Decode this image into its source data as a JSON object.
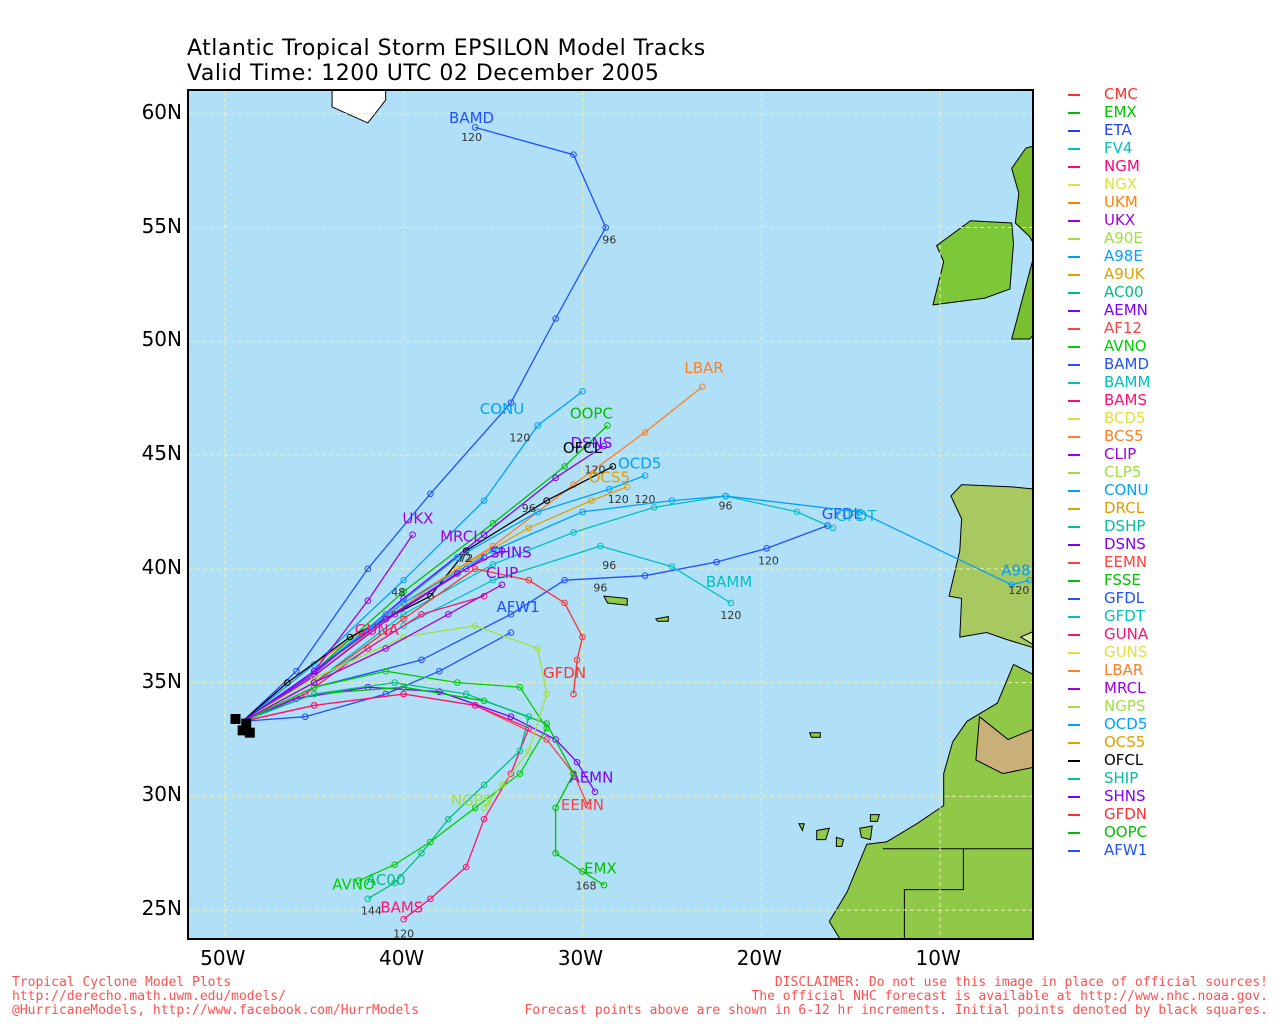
{
  "title_line1": "Atlantic Tropical Storm EPSILON Model Tracks",
  "title_line2": "Valid Time: 1200 UTC 02 December 2005",
  "axes": {
    "lat_labels": [
      "60N",
      "55N",
      "50N",
      "45N",
      "40N",
      "35N",
      "30N",
      "25N"
    ],
    "lon_labels": [
      "50W",
      "40W",
      "30W",
      "20W",
      "10W"
    ]
  },
  "legend": [
    {
      "name": "CMC",
      "color": "#ff3030"
    },
    {
      "name": "EMX",
      "color": "#00c000"
    },
    {
      "name": "ETA",
      "color": "#2040ff"
    },
    {
      "name": "FV4",
      "color": "#00c0c0"
    },
    {
      "name": "NGM",
      "color": "#ff0080"
    },
    {
      "name": "NGX",
      "color": "#e0e040"
    },
    {
      "name": "UKM",
      "color": "#ff8000"
    },
    {
      "name": "UKX",
      "color": "#a000e0"
    },
    {
      "name": "A90E",
      "color": "#a0e040"
    },
    {
      "name": "A98E",
      "color": "#00a0ff"
    },
    {
      "name": "A9UK",
      "color": "#e0a000"
    },
    {
      "name": "AC00",
      "color": "#00c080"
    },
    {
      "name": "AEMN",
      "color": "#8000ff"
    },
    {
      "name": "AF12",
      "color": "#ff4040"
    },
    {
      "name": "AVNO",
      "color": "#00d000"
    },
    {
      "name": "BAMD",
      "color": "#2050ff"
    },
    {
      "name": "BAMM",
      "color": "#00c0c0"
    },
    {
      "name": "BAMS",
      "color": "#ff1070"
    },
    {
      "name": "BCD5",
      "color": "#e0e040"
    },
    {
      "name": "BCS5",
      "color": "#ff8020"
    },
    {
      "name": "CLIP",
      "color": "#a000e0"
    },
    {
      "name": "CLP5",
      "color": "#a0e040"
    },
    {
      "name": "CONU",
      "color": "#00a0ff"
    },
    {
      "name": "DRCL",
      "color": "#e0a000"
    },
    {
      "name": "DSHP",
      "color": "#00c0a0"
    },
    {
      "name": "DSNS",
      "color": "#8000ff"
    },
    {
      "name": "EEMN",
      "color": "#ff4040"
    },
    {
      "name": "FSSE",
      "color": "#00c000"
    },
    {
      "name": "GFDL",
      "color": "#2050ff"
    },
    {
      "name": "GFDT",
      "color": "#00c0c0"
    },
    {
      "name": "GUNA",
      "color": "#ff1070"
    },
    {
      "name": "GUNS",
      "color": "#e0e040"
    },
    {
      "name": "LBAR",
      "color": "#ff8020"
    },
    {
      "name": "MRCL",
      "color": "#a000e0"
    },
    {
      "name": "NGPS",
      "color": "#a0e040"
    },
    {
      "name": "OCD5",
      "color": "#00a0ff"
    },
    {
      "name": "OCS5",
      "color": "#e0a000"
    },
    {
      "name": "OFCL",
      "color": "#000000"
    },
    {
      "name": "SHIP",
      "color": "#00c0a0"
    },
    {
      "name": "SHNS",
      "color": "#8000ff"
    },
    {
      "name": "GFDN",
      "color": "#ff3030"
    },
    {
      "name": "OOPC",
      "color": "#00c000"
    },
    {
      "name": "AFW1",
      "color": "#2050ff"
    }
  ],
  "footer_left": "Tropical Cyclone Model Plots\nhttp://derecho.math.uwm.edu/models/\n@HurricaneModels, http://www.facebook.com/HurrModels",
  "footer_right": "DISCLAIMER: Do not use this image in place of official sources!\nThe official NHC forecast is available at http://www.nhc.noaa.gov.\nForecast points above are shown in 6-12 hr increments. Initial points denoted by black squares.",
  "tracks": [
    {
      "name": "BAMD",
      "color": "#2050ff",
      "label_pt": [
        -36.2,
        59.6
      ],
      "points": [
        [
          -49,
          33.3
        ],
        [
          -46,
          35.5
        ],
        [
          -42,
          40
        ],
        [
          -38.5,
          43.3
        ],
        [
          -34,
          47.3
        ],
        [
          -31.5,
          51
        ],
        [
          -28.7,
          55
        ],
        [
          -30.5,
          58.2
        ],
        [
          -36,
          59.4
        ]
      ],
      "hours": [
        [
          "96",
          -28.5,
          54.3
        ],
        [
          "120",
          -36.2,
          58.8
        ]
      ]
    },
    {
      "name": "LBAR",
      "color": "#ff8020",
      "label_pt": [
        -23.2,
        48.6
      ],
      "points": [
        [
          -49,
          33.3
        ],
        [
          -45,
          35.8
        ],
        [
          -40,
          38.5
        ],
        [
          -35,
          41
        ],
        [
          -30.5,
          43.7
        ],
        [
          -26.5,
          46
        ],
        [
          -23.3,
          48
        ]
      ],
      "hours": []
    },
    {
      "name": "CONU",
      "color": "#00a0ff",
      "label_pt": [
        -34.5,
        46.8
      ],
      "points": [
        [
          -49,
          33.3
        ],
        [
          -45,
          35.8
        ],
        [
          -40,
          39.5
        ],
        [
          -35.5,
          43
        ],
        [
          -32.5,
          46.3
        ],
        [
          -30,
          47.8
        ]
      ],
      "hours": [
        [
          "120",
          -33.5,
          45.6
        ]
      ]
    },
    {
      "name": "OOPC",
      "color": "#00c000",
      "label_pt": [
        -29.5,
        46.6
      ],
      "points": [
        [
          -49,
          33.3
        ],
        [
          -45,
          35.5
        ],
        [
          -40,
          39
        ],
        [
          -35,
          42
        ],
        [
          -31,
          44.5
        ],
        [
          -28.6,
          46.3
        ]
      ],
      "hours": []
    },
    {
      "name": "DSNS",
      "color": "#8000ff",
      "label_pt": [
        -29.5,
        45.3
      ],
      "points": [
        [
          -49,
          33.3
        ],
        [
          -45,
          35.4
        ],
        [
          -40,
          38.7
        ],
        [
          -35.5,
          41.5
        ],
        [
          -31.5,
          44
        ],
        [
          -28.8,
          45.4
        ]
      ],
      "hours": []
    },
    {
      "name": "OFCL",
      "color": "#000000",
      "label_pt": [
        -30,
        45.1
      ],
      "points": [
        [
          -49,
          33.3
        ],
        [
          -46.5,
          35
        ],
        [
          -43,
          37
        ],
        [
          -38.5,
          38.8
        ],
        [
          -36.5,
          40.8
        ],
        [
          -32,
          43
        ],
        [
          -28.3,
          44.5
        ]
      ],
      "hours": [
        [
          "48",
          -40.3,
          38.8
        ],
        [
          "72",
          -36.6,
          40.3
        ],
        [
          "96",
          -33,
          42.5
        ],
        [
          "120",
          -29.3,
          44.2
        ]
      ]
    },
    {
      "name": "OCD5",
      "color": "#00a0ff",
      "label_pt": [
        -26.8,
        44.4
      ],
      "points": [
        [
          -49,
          33.3
        ],
        [
          -45,
          35.5
        ],
        [
          -41,
          38
        ],
        [
          -37,
          40.5
        ],
        [
          -32.5,
          42.5
        ],
        [
          -28.5,
          43.5
        ],
        [
          -26.5,
          44.1
        ]
      ],
      "hours": [
        [
          "120",
          -28,
          42.9
        ]
      ]
    },
    {
      "name": "OCS5",
      "color": "#e0a000",
      "label_pt": [
        -28.5,
        43.8
      ],
      "points": [
        [
          -49,
          33.3
        ],
        [
          -45,
          35.3
        ],
        [
          -41,
          37.8
        ],
        [
          -37,
          40
        ],
        [
          -33,
          41.8
        ],
        [
          -29.5,
          43
        ],
        [
          -27.5,
          43.6
        ]
      ],
      "hours": [
        [
          "120",
          -26.5,
          42.9
        ]
      ]
    },
    {
      "name": "UKX",
      "color": "#a000e0",
      "label_pt": [
        -39.2,
        42
      ],
      "points": [
        [
          -49,
          33.3
        ],
        [
          -45,
          35.5
        ],
        [
          -42,
          38.6
        ],
        [
          -39.5,
          41.5
        ]
      ],
      "hours": []
    },
    {
      "name": "MRCL",
      "color": "#a000e0",
      "label_pt": [
        -36.8,
        41.2
      ],
      "points": [
        [
          -49,
          33.3
        ],
        [
          -45,
          35.3
        ],
        [
          -40.5,
          38
        ],
        [
          -36.5,
          40
        ],
        [
          -35.5,
          40.5
        ]
      ],
      "hours": [
        [
          "72",
          -36.5,
          40.3
        ]
      ]
    },
    {
      "name": "GFDL",
      "color": "#2050ff",
      "label_pt": [
        -15.5,
        42.2
      ],
      "points": [
        [
          -49,
          33.3
        ],
        [
          -45,
          34.8
        ],
        [
          -39,
          36
        ],
        [
          -34,
          38
        ],
        [
          -31,
          39.5
        ],
        [
          -26.5,
          39.7
        ],
        [
          -22.5,
          40.3
        ],
        [
          -19.7,
          40.9
        ],
        [
          -16.3,
          41.9
        ]
      ],
      "hours": [
        [
          "96",
          -29,
          39
        ],
        [
          "120",
          -19.6,
          40.2
        ]
      ]
    },
    {
      "name": "GFDT",
      "color": "#00c0c0",
      "label_pt": [
        -14.7,
        42.1
      ],
      "points": [
        [
          -49,
          33.3
        ],
        [
          -45,
          35
        ],
        [
          -40,
          38
        ],
        [
          -35,
          40.2
        ],
        [
          -30.5,
          41.6
        ],
        [
          -26,
          42.7
        ],
        [
          -22,
          43.2
        ],
        [
          -18,
          42.5
        ],
        [
          -16,
          41.8
        ]
      ],
      "hours": []
    },
    {
      "name": "A98E",
      "color": "#00a0ff",
      "label_pt": [
        -5.5,
        39.7
      ],
      "points": [
        [
          -49,
          33.3
        ],
        [
          -45,
          35.5
        ],
        [
          -40,
          38.5
        ],
        [
          -35,
          40.8
        ],
        [
          -30,
          42.5
        ],
        [
          -25,
          43
        ],
        [
          -22,
          43.2
        ],
        [
          -14.5,
          42.5
        ],
        [
          -6,
          39.3
        ],
        [
          -5,
          39.5
        ]
      ],
      "hours": [
        [
          "96",
          -22,
          42.6
        ],
        [
          "120",
          -5.6,
          38.9
        ]
      ]
    },
    {
      "name": "BAMM",
      "color": "#00c0c0",
      "label_pt": [
        -21.8,
        39.2
      ],
      "points": [
        [
          -49,
          33.3
        ],
        [
          -45,
          35
        ],
        [
          -40,
          37.5
        ],
        [
          -35,
          39.5
        ],
        [
          -29,
          41
        ],
        [
          -25,
          40.1
        ],
        [
          -21.7,
          38.5
        ]
      ],
      "hours": [
        [
          "96",
          -28.5,
          40
        ],
        [
          "120",
          -21.7,
          37.8
        ]
      ]
    },
    {
      "name": "AFW1",
      "color": "#2050ff",
      "label_pt": [
        -33.6,
        38.1
      ],
      "points": [
        [
          -49,
          33.3
        ],
        [
          -45.5,
          33.5
        ],
        [
          -41,
          34.5
        ],
        [
          -38,
          35.5
        ],
        [
          -34,
          37.2
        ]
      ],
      "hours": []
    },
    {
      "name": "GUNA",
      "color": "#ff1070",
      "label_pt": [
        -41.5,
        37.1
      ],
      "points": [
        [
          -49,
          33.3
        ],
        [
          -45.5,
          34.5
        ],
        [
          -42,
          36.5
        ],
        [
          -39,
          38
        ],
        [
          -35.5,
          38.8
        ]
      ],
      "hours": []
    },
    {
      "name": "GFDN",
      "color": "#ff3030",
      "label_pt": [
        -31,
        35.2
      ],
      "points": [
        [
          -49,
          33.3
        ],
        [
          -45,
          35
        ],
        [
          -40,
          37.8
        ],
        [
          -36,
          40
        ],
        [
          -33,
          39.5
        ],
        [
          -31,
          38.5
        ],
        [
          -30,
          37
        ],
        [
          -30.3,
          36
        ],
        [
          -30.5,
          34.5
        ]
      ],
      "hours": []
    },
    {
      "name": "AEMN",
      "color": "#8000ff",
      "label_pt": [
        -29.5,
        30.6
      ],
      "points": [
        [
          -49,
          33.3
        ],
        [
          -46,
          34.3
        ],
        [
          -42,
          34.8
        ],
        [
          -38,
          34.6
        ],
        [
          -34,
          33.5
        ],
        [
          -31.5,
          32.5
        ],
        [
          -30.3,
          31.5
        ],
        [
          -29.3,
          30.2
        ]
      ],
      "hours": []
    },
    {
      "name": "EEMN",
      "color": "#ff4040",
      "label_pt": [
        -30,
        29.4
      ],
      "points": [
        [
          -49,
          33.3
        ],
        [
          -45,
          34
        ],
        [
          -40,
          34.5
        ],
        [
          -36,
          34
        ],
        [
          -32,
          32.5
        ],
        [
          -30.5,
          31
        ],
        [
          -29.7,
          29.6
        ]
      ],
      "hours": []
    },
    {
      "name": "EMX",
      "color": "#00c000",
      "label_pt": [
        -29,
        26.6
      ],
      "points": [
        [
          -49,
          33.3
        ],
        [
          -45,
          34.5
        ],
        [
          -40,
          34.8
        ],
        [
          -35.5,
          34.2
        ],
        [
          -32,
          33.2
        ],
        [
          -30.5,
          31
        ],
        [
          -31.5,
          29.5
        ],
        [
          -31.5,
          27.5
        ],
        [
          -30,
          26.7
        ],
        [
          -28.8,
          26.1
        ]
      ],
      "hours": [
        [
          "168",
          -29.8,
          25.9
        ]
      ]
    },
    {
      "name": "BAMS",
      "color": "#ff1070",
      "label_pt": [
        -40.1,
        24.9
      ],
      "points": [
        [
          -49,
          33.3
        ],
        [
          -45,
          34
        ],
        [
          -40,
          34.5
        ],
        [
          -36,
          34
        ],
        [
          -33,
          33
        ],
        [
          -34,
          31
        ],
        [
          -35.5,
          29
        ],
        [
          -36.5,
          26.9
        ],
        [
          -38.5,
          25.5
        ],
        [
          -40,
          24.6
        ]
      ],
      "hours": [
        [
          "120",
          -40,
          23.8
        ]
      ]
    },
    {
      "name": "AC00",
      "color": "#00c080",
      "label_pt": [
        -41,
        26.1
      ],
      "points": [
        [
          -49,
          33.3
        ],
        [
          -45,
          34.5
        ],
        [
          -40.5,
          35
        ],
        [
          -36.5,
          34.5
        ],
        [
          -33,
          33.5
        ],
        [
          -33.5,
          32
        ],
        [
          -35.5,
          30.5
        ],
        [
          -37.5,
          29
        ],
        [
          -39,
          27.5
        ],
        [
          -40.5,
          26.2
        ],
        [
          -42,
          25.5
        ]
      ],
      "hours": [
        [
          "144",
          -41.8,
          24.8
        ]
      ]
    },
    {
      "name": "AVNO",
      "color": "#00d000",
      "label_pt": [
        -42.8,
        25.9
      ],
      "points": [
        [
          -49,
          33.3
        ],
        [
          -45,
          34.8
        ],
        [
          -41,
          35.5
        ],
        [
          -37,
          35
        ],
        [
          -33.5,
          34.8
        ],
        [
          -32,
          33
        ],
        [
          -33.5,
          31
        ],
        [
          -36,
          29.5
        ],
        [
          -38.5,
          28
        ],
        [
          -40.5,
          27
        ],
        [
          -42.5,
          26.3
        ]
      ],
      "hours": []
    },
    {
      "name": "NGPS",
      "color": "#a0e040",
      "label_pt": [
        -36.2,
        29.6
      ],
      "points": [
        [
          -49,
          33.3
        ],
        [
          -45,
          35.2
        ],
        [
          -40,
          37
        ],
        [
          -36,
          37.5
        ],
        [
          -32.5,
          36.5
        ],
        [
          -32,
          34.5
        ],
        [
          -33,
          32
        ],
        [
          -34.5,
          30.5
        ],
        [
          -35.5,
          29.5
        ]
      ],
      "hours": []
    },
    {
      "name": "CLIP",
      "color": "#a000e0",
      "label_pt": [
        -34.5,
        39.6
      ],
      "points": [
        [
          -49,
          33.3
        ],
        [
          -45,
          35
        ],
        [
          -41,
          36.5
        ],
        [
          -37.5,
          38
        ],
        [
          -34.5,
          39.3
        ]
      ],
      "hours": []
    },
    {
      "name": "SHNS",
      "color": "#8000ff",
      "label_pt": [
        -34,
        40.5
      ],
      "points": [
        [
          -49,
          33.3
        ],
        [
          -45,
          35.5
        ],
        [
          -41,
          37.8
        ],
        [
          -37,
          39.8
        ],
        [
          -34.5,
          40.8
        ]
      ],
      "hours": []
    }
  ]
}
